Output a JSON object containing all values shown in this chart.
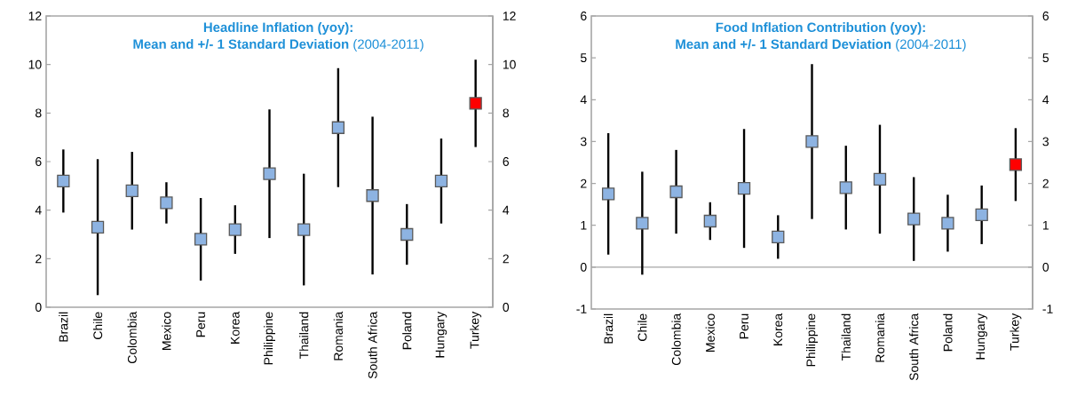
{
  "chart_data": [
    {
      "type": "scatter",
      "title": "Headline Inflation (yoy):",
      "subtitle": "**Mean and +/- 1 Standard Deviation** (2004-2011)",
      "categories": [
        "Brazil",
        "Chile",
        "Colombia",
        "Mexico",
        "Peru",
        "Korea",
        "Philippine",
        "Thailand",
        "Romania",
        "South Africa",
        "Poland",
        "Hungary",
        "Turkey"
      ],
      "values": [
        5.2,
        3.3,
        4.8,
        4.3,
        2.8,
        3.2,
        5.5,
        3.2,
        7.4,
        4.6,
        3.0,
        5.2,
        8.4
      ],
      "errors": [
        1.3,
        2.8,
        1.6,
        0.85,
        1.7,
        1.0,
        2.65,
        2.3,
        2.45,
        3.25,
        1.25,
        1.75,
        1.8
      ],
      "colors": [
        "#8db3e2",
        "#8db3e2",
        "#8db3e2",
        "#8db3e2",
        "#8db3e2",
        "#8db3e2",
        "#8db3e2",
        "#8db3e2",
        "#8db3e2",
        "#8db3e2",
        "#8db3e2",
        "#8db3e2",
        "#ff0000"
      ],
      "marker": "square",
      "ylim": [
        0,
        12
      ],
      "yticks": [
        0,
        2,
        4,
        6,
        8,
        10,
        12
      ],
      "y2lim": [
        0,
        12
      ],
      "y2ticks": [
        0,
        2,
        4,
        6,
        8,
        10,
        12
      ]
    },
    {
      "type": "scatter",
      "title": "Food Inflation Contribution (yoy):",
      "subtitle": "**Mean and +/- 1 Standard Deviation** (2004-2011)",
      "categories": [
        "Brazil",
        "Chile",
        "Colombia",
        "Mexico",
        "Peru",
        "Korea",
        "Philippine",
        "Thailand",
        "Romania",
        "South Africa",
        "Poland",
        "Hungary",
        "Turkey"
      ],
      "values": [
        1.75,
        1.05,
        1.8,
        1.1,
        1.88,
        0.72,
        3.0,
        1.9,
        2.1,
        1.15,
        1.05,
        1.25,
        2.45
      ],
      "errors": [
        1.45,
        1.23,
        1.0,
        0.45,
        1.42,
        0.52,
        1.85,
        1.0,
        1.3,
        1.0,
        0.68,
        0.7,
        0.87
      ],
      "colors": [
        "#8db3e2",
        "#8db3e2",
        "#8db3e2",
        "#8db3e2",
        "#8db3e2",
        "#8db3e2",
        "#8db3e2",
        "#8db3e2",
        "#8db3e2",
        "#8db3e2",
        "#8db3e2",
        "#8db3e2",
        "#ff0000"
      ],
      "marker": "square",
      "ylim": [
        -1,
        6
      ],
      "yticks": [
        -1,
        0,
        1,
        2,
        3,
        4,
        5,
        6
      ],
      "y2lim": [
        -1,
        6
      ],
      "y2ticks": [
        -1,
        0,
        1,
        2,
        3,
        4,
        5,
        6
      ],
      "ref_lines": [
        {
          "axis": "y",
          "value": 0
        }
      ]
    }
  ]
}
